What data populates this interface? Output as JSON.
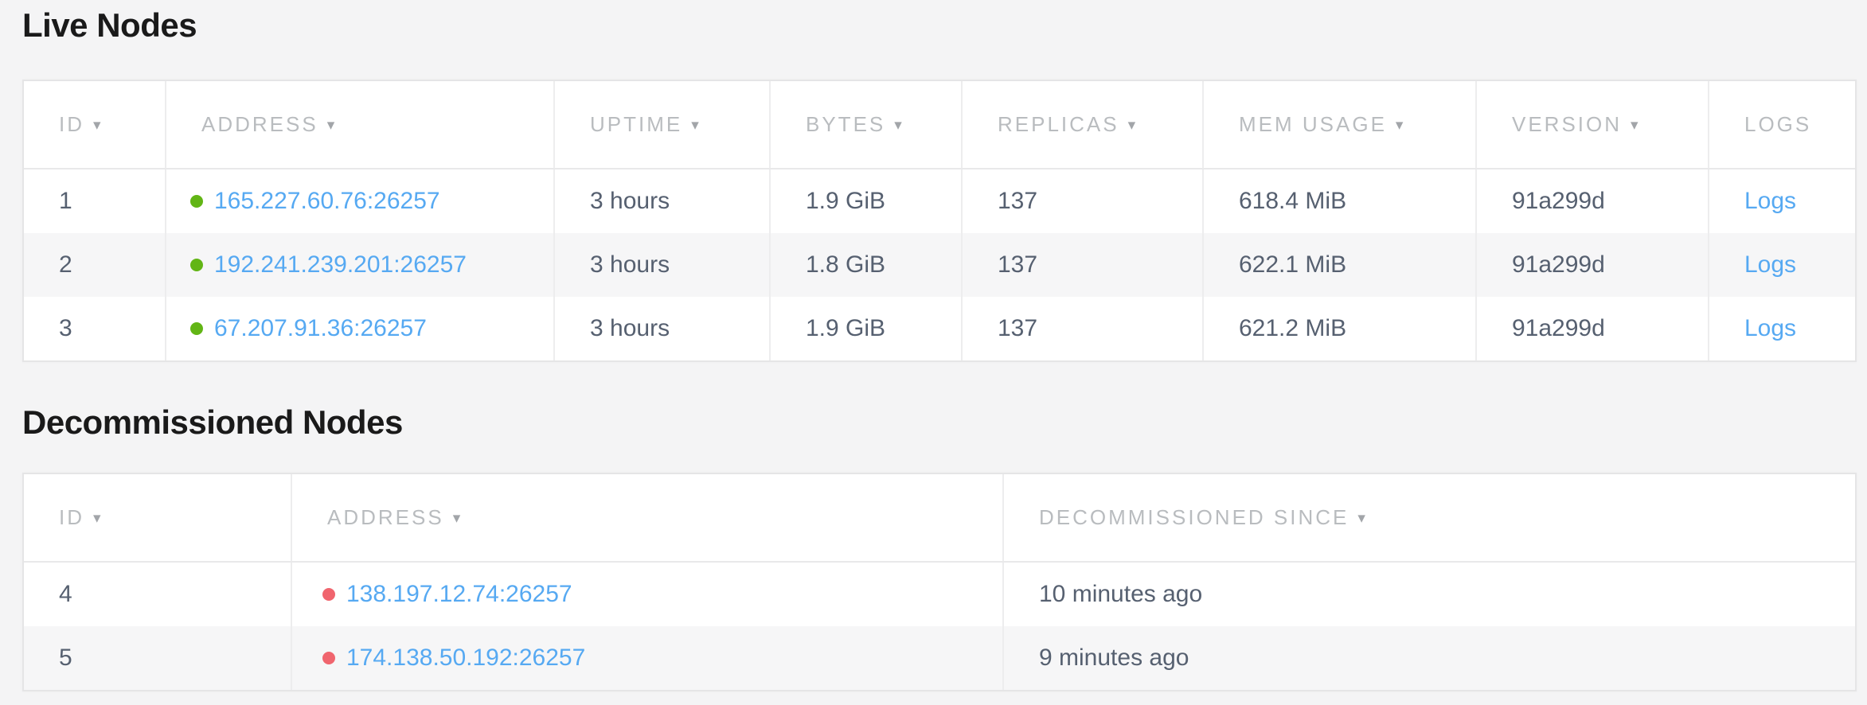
{
  "colors": {
    "page_background": "#f4f4f5",
    "link_blue": "#56a9f2",
    "live_dot_green": "#62b515",
    "decommissioned_dot_red": "#f0656e",
    "header_text_gray": "#b9bcbf",
    "cell_text": "#566070",
    "title_text": "#1a1a1a",
    "row_stripe": "#f6f6f7"
  },
  "icons": {
    "sort_arrow": "▾"
  },
  "live_nodes": {
    "title": "Live Nodes",
    "columns": [
      {
        "label": "ID",
        "sortable": true
      },
      {
        "label": "ADDRESS",
        "sortable": true
      },
      {
        "label": "UPTIME",
        "sortable": true
      },
      {
        "label": "BYTES",
        "sortable": true
      },
      {
        "label": "REPLICAS",
        "sortable": true
      },
      {
        "label": "MEM USAGE",
        "sortable": true
      },
      {
        "label": "VERSION",
        "sortable": true
      },
      {
        "label": "LOGS",
        "sortable": false
      }
    ],
    "rows": [
      {
        "id": "1",
        "status": "live",
        "dot_color": "#62b515",
        "address": "165.227.60.76:26257",
        "uptime": "3 hours",
        "bytes": "1.9 GiB",
        "replicas": "137",
        "mem_usage": "618.4 MiB",
        "version": "91a299d",
        "logs_label": "Logs"
      },
      {
        "id": "2",
        "status": "live",
        "dot_color": "#62b515",
        "address": "192.241.239.201:26257",
        "uptime": "3 hours",
        "bytes": "1.8 GiB",
        "replicas": "137",
        "mem_usage": "622.1 MiB",
        "version": "91a299d",
        "logs_label": "Logs"
      },
      {
        "id": "3",
        "status": "live",
        "dot_color": "#62b515",
        "address": "67.207.91.36:26257",
        "uptime": "3 hours",
        "bytes": "1.9 GiB",
        "replicas": "137",
        "mem_usage": "621.2 MiB",
        "version": "91a299d",
        "logs_label": "Logs"
      }
    ]
  },
  "decommissioned_nodes": {
    "title": "Decommissioned Nodes",
    "columns": [
      {
        "label": "ID",
        "sortable": true
      },
      {
        "label": "ADDRESS",
        "sortable": true
      },
      {
        "label": "DECOMMISSIONED SINCE",
        "sortable": true
      }
    ],
    "rows": [
      {
        "id": "4",
        "status": "decommissioned",
        "dot_color": "#f0656e",
        "address": "138.197.12.74:26257",
        "since": "10 minutes ago"
      },
      {
        "id": "5",
        "status": "decommissioned",
        "dot_color": "#f0656e",
        "address": "174.138.50.192:26257",
        "since": "9 minutes ago"
      }
    ]
  }
}
